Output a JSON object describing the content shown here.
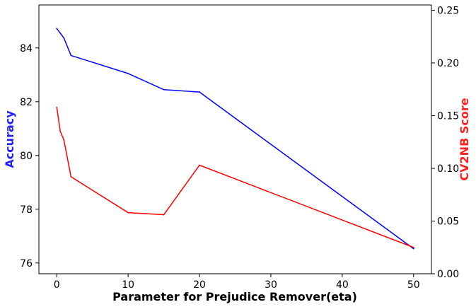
{
  "chart_data": {
    "type": "line",
    "title": "",
    "xlabel": "Parameter for Prejudice Remover(eta)",
    "ylabel_left": "Accuracy",
    "ylabel_right": "CV2NB Score",
    "xlim": [
      -2.5,
      52.5
    ],
    "ylim_left": [
      75.6,
      85.6
    ],
    "ylim_right": [
      0.0,
      0.255
    ],
    "x_ticks": [
      0,
      10,
      20,
      30,
      40,
      50
    ],
    "y_left_ticks": [
      76,
      78,
      80,
      82,
      84
    ],
    "y_right_ticks": [
      "0.00",
      "0.05",
      "0.10",
      "0.15",
      "0.20",
      "0.25"
    ],
    "grid": false,
    "series": [
      {
        "axis": "left",
        "color": "#0000ff",
        "x": [
          0,
          0.5,
          1,
          2,
          10,
          15,
          20,
          50
        ],
        "values": [
          84.72,
          84.55,
          84.37,
          83.72,
          83.05,
          82.45,
          82.36,
          76.53
        ]
      },
      {
        "axis": "right",
        "color": "#ff0000",
        "x": [
          0,
          0.5,
          1,
          2,
          10,
          15,
          20,
          50
        ],
        "values": [
          0.158,
          0.135,
          0.127,
          0.092,
          0.058,
          0.056,
          0.103,
          0.025
        ]
      }
    ],
    "label_colors": {
      "left": "#2020ff",
      "right": "#ff2020"
    }
  }
}
